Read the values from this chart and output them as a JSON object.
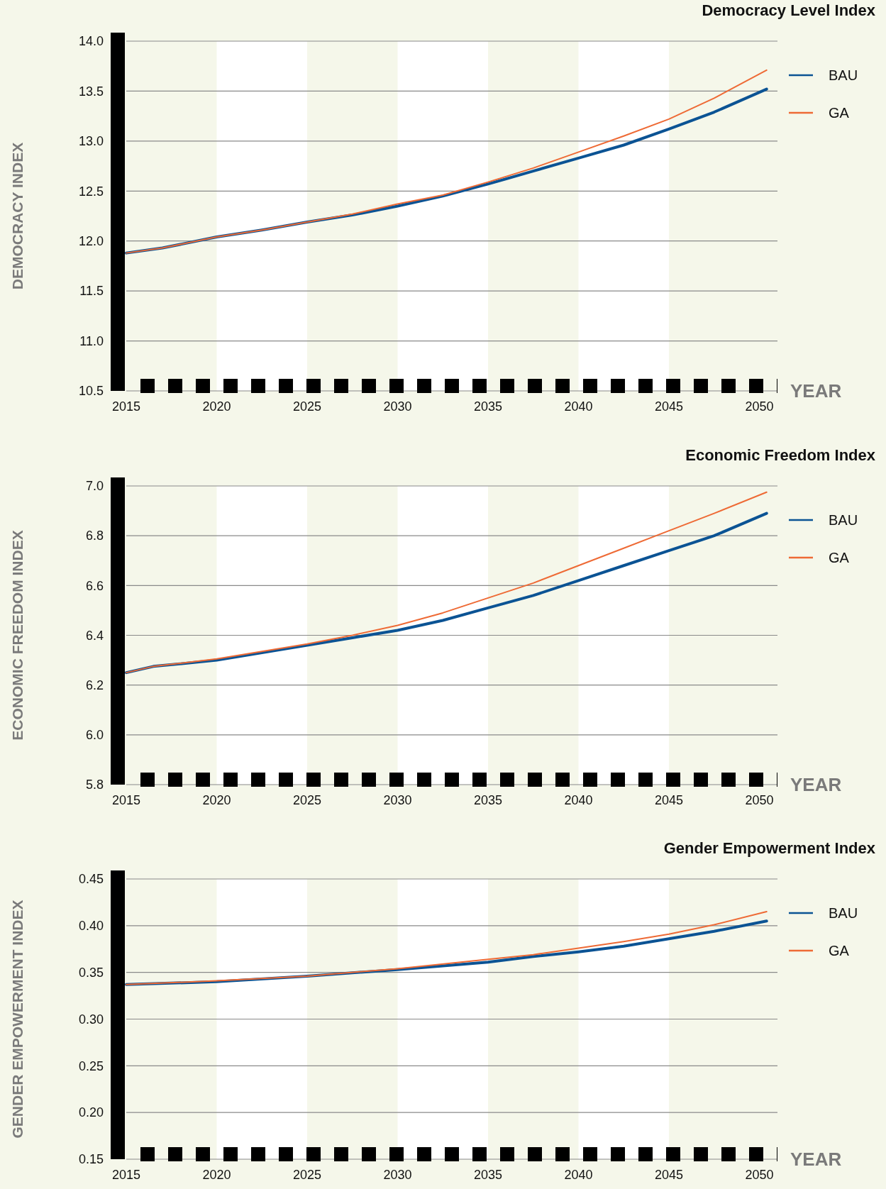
{
  "chart_data": [
    {
      "type": "line",
      "title": "Democracy Level Index",
      "xlabel": "YEAR",
      "ylabel": "DEMOCRACY INDEX",
      "x": [
        2015,
        2017,
        2020,
        2022.5,
        2025,
        2027.5,
        2030,
        2032.5,
        2035,
        2037.5,
        2040,
        2042.5,
        2045,
        2047.5,
        2050.4
      ],
      "series": [
        {
          "name": "BAU",
          "color": "#0b5394",
          "values": [
            11.88,
            11.93,
            12.04,
            12.11,
            12.19,
            12.26,
            12.35,
            12.45,
            12.57,
            12.7,
            12.83,
            12.96,
            13.12,
            13.29,
            13.52
          ]
        },
        {
          "name": "GA",
          "color": "#ee6a35",
          "values": [
            11.88,
            11.93,
            12.04,
            12.11,
            12.19,
            12.27,
            12.37,
            12.46,
            12.59,
            12.73,
            12.89,
            13.05,
            13.22,
            13.43,
            13.71
          ]
        }
      ],
      "xlim": [
        2015,
        2051
      ],
      "xticks": [
        2015,
        2020,
        2025,
        2030,
        2035,
        2040,
        2045,
        2050
      ],
      "ylim": [
        10.5,
        14.0
      ],
      "yticks": [
        {
          "value": 10.5,
          "label": "10.5"
        },
        {
          "value": 11,
          "label": "11.0"
        },
        {
          "value": 11.5,
          "label": "11.5"
        },
        {
          "value": 12,
          "label": "12.0"
        },
        {
          "value": 12.5,
          "label": "12.5"
        },
        {
          "value": 13,
          "label": "13.0"
        },
        {
          "value": 13.5,
          "label": "13.5"
        },
        {
          "value": 14,
          "label": "14.0"
        }
      ],
      "bands": [
        {
          "axis": "x",
          "from": 2020,
          "to": 2025,
          "color": "#ffffff"
        },
        {
          "axis": "x",
          "from": 2030,
          "to": 2035,
          "color": "#ffffff"
        },
        {
          "axis": "x",
          "from": 2040,
          "to": 2045,
          "color": "#ffffff"
        }
      ],
      "grid": "y",
      "legend": "right",
      "line_style": "solid",
      "marker": "none"
    },
    {
      "type": "line",
      "title": "Economic Freedom Index",
      "xlabel": "YEAR",
      "ylabel": "ECONOMIC FREEDOM INDEX",
      "x": [
        2015,
        2016.5,
        2020,
        2022.5,
        2025,
        2027.5,
        2030,
        2032.5,
        2035,
        2037.5,
        2040,
        2042.5,
        2045,
        2047.5,
        2050.4
      ],
      "series": [
        {
          "name": "BAU",
          "color": "#0b5394",
          "values": [
            6.25,
            6.275,
            6.3,
            6.33,
            6.36,
            6.39,
            6.42,
            6.46,
            6.51,
            6.56,
            6.62,
            6.68,
            6.74,
            6.8,
            6.89
          ]
        },
        {
          "name": "GA",
          "color": "#ee6a35",
          "values": [
            6.25,
            6.275,
            6.305,
            6.335,
            6.365,
            6.4,
            6.44,
            6.49,
            6.55,
            6.61,
            6.68,
            6.75,
            6.82,
            6.89,
            6.975
          ]
        }
      ],
      "xlim": [
        2015,
        2051
      ],
      "xticks": [
        2015,
        2020,
        2025,
        2030,
        2035,
        2040,
        2045,
        2050
      ],
      "ylim": [
        5.8,
        7.0
      ],
      "yticks": [
        5.8,
        {
          "value": 6,
          "label": "6.0"
        },
        6.2,
        6.4,
        6.6,
        6.8,
        {
          "value": 7,
          "label": "7.0"
        }
      ],
      "bands": [
        {
          "axis": "x",
          "from": 2020,
          "to": 2025,
          "color": "#ffffff"
        },
        {
          "axis": "x",
          "from": 2030,
          "to": 2035,
          "color": "#ffffff"
        },
        {
          "axis": "x",
          "from": 2040,
          "to": 2045,
          "color": "#ffffff"
        }
      ],
      "grid": "y",
      "legend": "right",
      "line_style": "solid",
      "marker": "none"
    },
    {
      "type": "line",
      "title": "Gender Empowerment Index",
      "xlabel": "YEAR",
      "ylabel": "GENDER EMPOWERMENT INDEX",
      "x": [
        2015,
        2020,
        2025,
        2030,
        2035,
        2037.5,
        2040,
        2042.5,
        2045,
        2047.5,
        2050.4
      ],
      "series": [
        {
          "name": "BAU",
          "color": "#0b5394",
          "values": [
            0.337,
            0.34,
            0.346,
            0.353,
            0.361,
            0.367,
            0.372,
            0.378,
            0.386,
            0.394,
            0.405
          ]
        },
        {
          "name": "GA",
          "color": "#ee6a35",
          "values": [
            0.337,
            0.341,
            0.346,
            0.354,
            0.364,
            0.369,
            0.376,
            0.383,
            0.391,
            0.401,
            0.415
          ]
        }
      ],
      "xlim": [
        2015,
        2051
      ],
      "xticks": [
        2015,
        2020,
        2025,
        2030,
        2035,
        2040,
        2045,
        2050
      ],
      "ylim": [
        0.15,
        0.45
      ],
      "yticks": [
        0.15,
        {
          "value": 0.2,
          "label": "0.20"
        },
        0.25,
        {
          "value": 0.3,
          "label": "0.30"
        },
        0.35,
        {
          "value": 0.4,
          "label": "0.40"
        },
        0.45
      ],
      "bands": [
        {
          "axis": "x",
          "from": 2020,
          "to": 2025,
          "color": "#ffffff"
        },
        {
          "axis": "x",
          "from": 2030,
          "to": 2035,
          "color": "#ffffff"
        },
        {
          "axis": "x",
          "from": 2040,
          "to": 2045,
          "color": "#ffffff"
        }
      ],
      "grid": "y",
      "legend": "right",
      "line_style": "solid",
      "marker": "none"
    }
  ]
}
